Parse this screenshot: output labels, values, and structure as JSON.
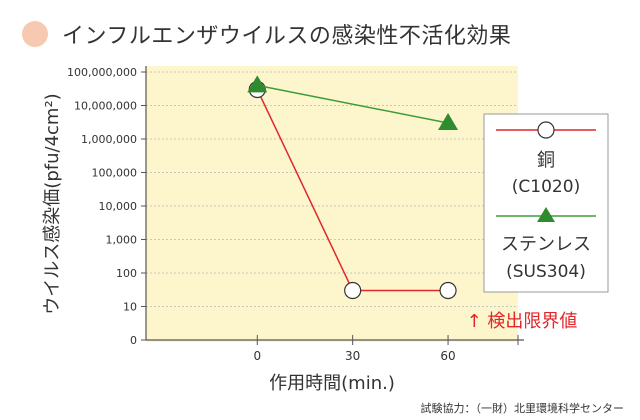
{
  "title": "インフルエンザウイルスの感染性不活化効果",
  "credit": "試験協力：（一財）北里環境科学センター",
  "colors": {
    "title_dot": "#f8c9b1",
    "plot_background": "#fdf6cc",
    "copper": "#e0272d",
    "stainless": "#3a9d3a",
    "detection_limit_text": "#e0272d",
    "axis": "#555555"
  },
  "chart_data": {
    "type": "line",
    "ylabel": "ウイルス感染価(pfu/4cm²)",
    "xlabel": "作用時間(min.)",
    "y_scale": "log",
    "x": [
      0,
      30,
      60
    ],
    "x_ticks": [
      "0",
      "30",
      "60"
    ],
    "xlim": [
      -35,
      82
    ],
    "ylim": [
      1,
      100000000
    ],
    "y_ticks": [
      {
        "value": 1,
        "label": "0"
      },
      {
        "value": 10,
        "label": "10"
      },
      {
        "value": 100,
        "label": "100"
      },
      {
        "value": 1000,
        "label": "1,000"
      },
      {
        "value": 10000,
        "label": "10,000"
      },
      {
        "value": 100000,
        "label": "100,000"
      },
      {
        "value": 1000000,
        "label": "1,000,000"
      },
      {
        "value": 10000000,
        "label": "10,000,000"
      },
      {
        "value": 100000000,
        "label": "100,000,000"
      }
    ],
    "series": [
      {
        "name": "銅",
        "sublabel": "(C1020)",
        "marker": "circle",
        "color": "#e0272d",
        "values": [
          30000000,
          30,
          30
        ]
      },
      {
        "name": "ステンレス",
        "sublabel": "(SUS304)",
        "marker": "triangle",
        "color": "#3a9d3a",
        "values": [
          40000000,
          null,
          3000000
        ]
      }
    ],
    "legend_position": "right",
    "annotation": "↑ 検出限界値"
  }
}
